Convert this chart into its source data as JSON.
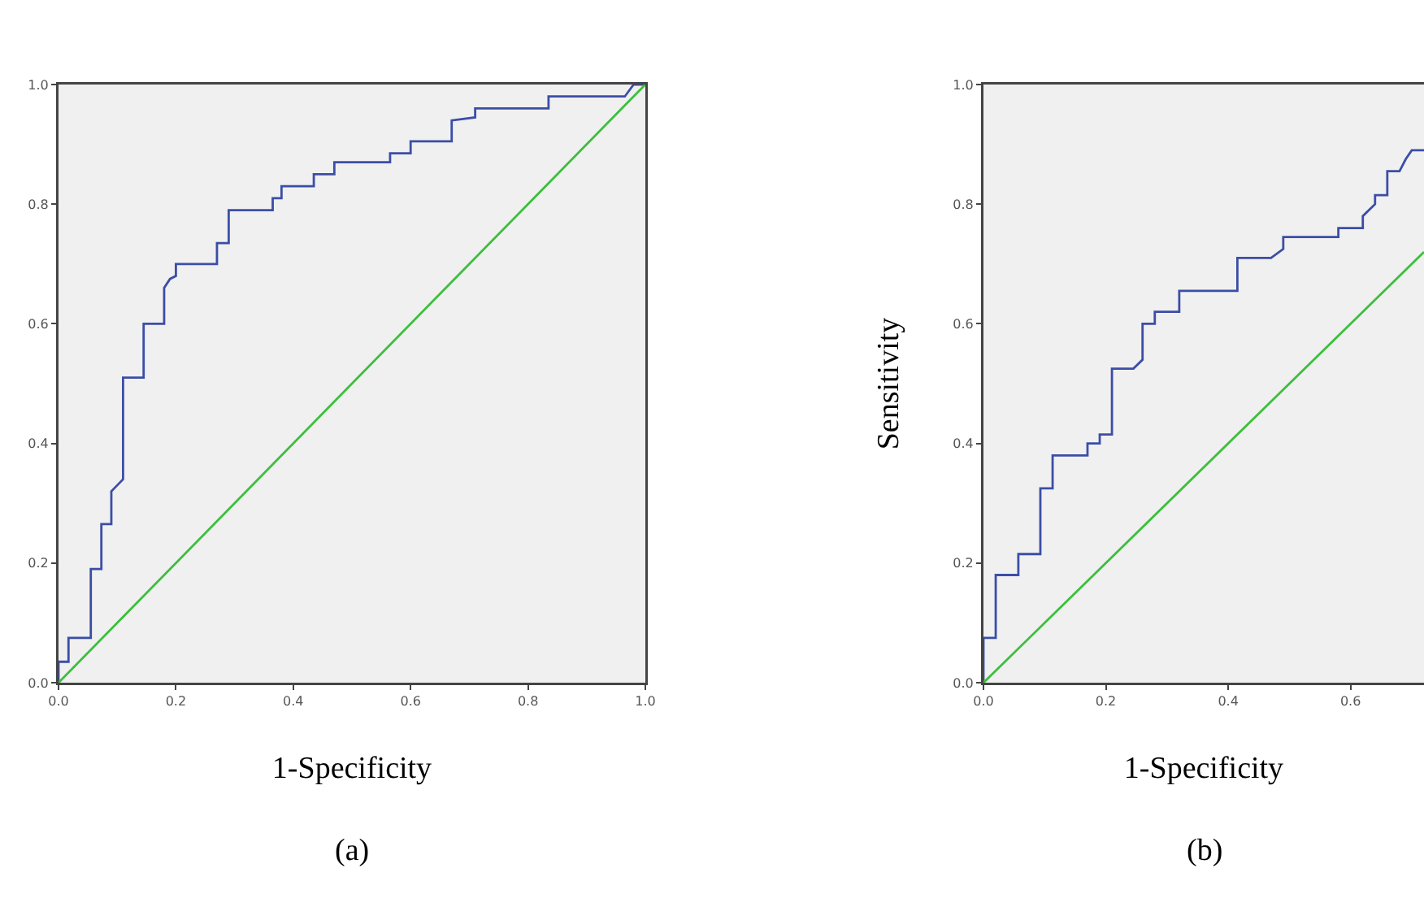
{
  "chart_data": [
    {
      "type": "line",
      "xlabel": "1-Specificity",
      "annotations": [
        "(a)"
      ],
      "xlim": [
        0,
        1
      ],
      "ylim": [
        0,
        1
      ],
      "xticks": [
        {
          "value": 0,
          "label": "0.0"
        },
        {
          "value": 0.2,
          "label": "0.2"
        },
        {
          "value": 0.4,
          "label": "0.4"
        },
        {
          "value": 0.6,
          "label": "0.6"
        },
        {
          "value": 0.8,
          "label": "0.8"
        },
        {
          "value": 1,
          "label": "1.0"
        }
      ],
      "yticks": [
        {
          "value": 0,
          "label": "0.0"
        },
        {
          "value": 0.2,
          "label": "0.2"
        },
        {
          "value": 0.4,
          "label": "0.4"
        },
        {
          "value": 0.6,
          "label": "0.6"
        },
        {
          "value": 0.8,
          "label": "0.8"
        },
        {
          "value": 1,
          "label": "1.0"
        }
      ],
      "grid": false,
      "marker": "none",
      "line_style": "solid",
      "series": [
        {
          "color": "#3b4ea6",
          "x": [
            0,
            0,
            0.017,
            0.017,
            0.055,
            0.055,
            0.073,
            0.073,
            0.09,
            0.09,
            0.1,
            0.11,
            0.11,
            0.145,
            0.145,
            0.18,
            0.18,
            0.19,
            0.2,
            0.2,
            0.27,
            0.27,
            0.29,
            0.29,
            0.365,
            0.365,
            0.38,
            0.38,
            0.435,
            0.435,
            0.47,
            0.47,
            0.565,
            0.565,
            0.6,
            0.6,
            0.67,
            0.67,
            0.71,
            0.71,
            0.835,
            0.835,
            0.965,
            0.98,
            1
          ],
          "values": [
            0,
            0.035,
            0.035,
            0.075,
            0.075,
            0.19,
            0.19,
            0.265,
            0.265,
            0.32,
            0.33,
            0.34,
            0.51,
            0.51,
            0.6,
            0.6,
            0.66,
            0.675,
            0.68,
            0.7,
            0.7,
            0.735,
            0.735,
            0.79,
            0.79,
            0.81,
            0.81,
            0.83,
            0.83,
            0.85,
            0.85,
            0.87,
            0.87,
            0.885,
            0.885,
            0.905,
            0.905,
            0.94,
            0.945,
            0.96,
            0.96,
            0.98,
            0.98,
            1,
            1
          ]
        },
        {
          "color": "#3cbf3c",
          "x": [
            0,
            1
          ],
          "values": [
            0,
            1
          ]
        }
      ]
    },
    {
      "type": "line",
      "xlabel": "1-Specificity",
      "ylabel": "Sensitivity",
      "annotations": [
        "(b)"
      ],
      "xlim": [
        0,
        0.72
      ],
      "ylim": [
        0,
        1
      ],
      "xticks": [
        {
          "value": 0,
          "label": "0.0"
        },
        {
          "value": 0.2,
          "label": "0.2"
        },
        {
          "value": 0.4,
          "label": "0.4"
        },
        {
          "value": 0.6,
          "label": "0.6"
        }
      ],
      "yticks": [
        {
          "value": 0,
          "label": "0.0"
        },
        {
          "value": 0.2,
          "label": "0.2"
        },
        {
          "value": 0.4,
          "label": "0.4"
        },
        {
          "value": 0.6,
          "label": "0.6"
        },
        {
          "value": 0.8,
          "label": "0.8"
        },
        {
          "value": 1,
          "label": "1.0"
        }
      ],
      "grid": false,
      "marker": "none",
      "line_style": "solid",
      "series": [
        {
          "color": "#3b4ea6",
          "x": [
            0,
            0,
            0.02,
            0.02,
            0.057,
            0.057,
            0.093,
            0.093,
            0.113,
            0.113,
            0.17,
            0.17,
            0.19,
            0.19,
            0.21,
            0.21,
            0.245,
            0.26,
            0.26,
            0.28,
            0.28,
            0.32,
            0.32,
            0.415,
            0.415,
            0.47,
            0.49,
            0.49,
            0.58,
            0.58,
            0.62,
            0.62,
            0.63,
            0.64,
            0.64,
            0.66,
            0.66,
            0.68,
            0.69,
            0.7,
            0.72
          ],
          "values": [
            0,
            0.075,
            0.075,
            0.18,
            0.18,
            0.215,
            0.215,
            0.325,
            0.325,
            0.38,
            0.38,
            0.4,
            0.4,
            0.415,
            0.415,
            0.525,
            0.525,
            0.54,
            0.6,
            0.6,
            0.62,
            0.62,
            0.655,
            0.655,
            0.71,
            0.71,
            0.725,
            0.745,
            0.745,
            0.76,
            0.76,
            0.78,
            0.79,
            0.8,
            0.815,
            0.815,
            0.855,
            0.855,
            0.875,
            0.89,
            0.89
          ]
        },
        {
          "color": "#3cbf3c",
          "x": [
            0,
            0.72
          ],
          "values": [
            0,
            0.72
          ]
        }
      ]
    }
  ]
}
